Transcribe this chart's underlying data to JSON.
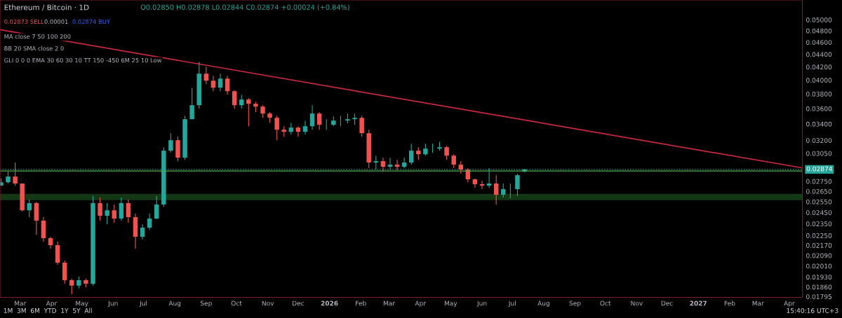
{
  "chart_data": {
    "type": "candlestick",
    "title": "Ethereum / Bitcoin · 1D",
    "subtitle": "O0.02850 H0.02878 L0.02844 C0.02874 +0.00024 (+0.84%)",
    "annotations": [
      "0.02873 SELL",
      "0.00001",
      "0.02874 BUY",
      "MA close 7 50 100 200",
      "BB 20 SMA close 2 0",
      "GLI 0 0 0 EMA 30 60 30 10 TT 150 -450 6M 25 10 Low",
      "1M  3M  6M  YTD  1Y  5Y  All",
      "15:40:16 UTC+3"
    ],
    "x": [
      "2025-02-10",
      "2025-02-17",
      "2025-02-24",
      "2025-03-03",
      "2025-03-10",
      "2025-03-17",
      "2025-03-24",
      "2025-03-31",
      "2025-04-07",
      "2025-04-14",
      "2025-04-21",
      "2025-04-28",
      "2025-05-05",
      "2025-05-12",
      "2025-05-19",
      "2025-05-26",
      "2025-06-02",
      "2025-06-09",
      "2025-06-16",
      "2025-06-23",
      "2025-06-30",
      "2025-07-07",
      "2025-07-14",
      "2025-07-21",
      "2025-07-28",
      "2025-08-04",
      "2025-08-11",
      "2025-08-18",
      "2025-08-25",
      "2025-09-01",
      "2025-09-08",
      "2025-09-15",
      "2025-09-22",
      "2025-09-29",
      "2025-10-06",
      "2025-10-13",
      "2025-10-20",
      "2025-10-27",
      "2025-11-03",
      "2025-11-10",
      "2025-11-17",
      "2025-11-24",
      "2025-12-01",
      "2025-12-08",
      "2025-12-15",
      "2025-12-22",
      "2025-12-29",
      "2026-01-05",
      "2026-01-12",
      "2026-01-19",
      "2026-01-26",
      "2026-02-02",
      "2026-02-09",
      "2026-02-16",
      "2026-02-23",
      "2026-03-02",
      "2026-03-09",
      "2026-03-16",
      "2026-03-23",
      "2026-03-30",
      "2026-04-06",
      "2026-04-13",
      "2026-04-20",
      "2026-04-27",
      "2026-05-04",
      "2026-05-11",
      "2026-05-18",
      "2026-05-25",
      "2026-06-01",
      "2026-06-08",
      "2026-06-15",
      "2026-06-22",
      "2026-06-29",
      "2026-07-06",
      "2026-07-13"
    ],
    "ohlc": [
      [
        0.02706,
        0.02777,
        0.02706,
        0.02741
      ],
      [
        0.02741,
        0.0285,
        0.02727,
        0.02799
      ],
      [
        0.02799,
        0.02948,
        0.02706,
        0.02727
      ],
      [
        0.02727,
        0.02727,
        0.02459,
        0.02471
      ],
      [
        0.02471,
        0.02569,
        0.02408,
        0.02536
      ],
      [
        0.02536,
        0.02549,
        0.02257,
        0.02377
      ],
      [
        0.02377,
        0.02408,
        0.022,
        0.02228
      ],
      [
        0.02228,
        0.0224,
        0.02143,
        0.02171
      ],
      [
        0.02171,
        0.022,
        0.02019,
        0.02035
      ],
      [
        0.02035,
        0.02051,
        0.01883,
        0.01907
      ],
      [
        0.01907,
        0.01917,
        0.01811,
        0.01869
      ],
      [
        0.01869,
        0.01932,
        0.0185,
        0.01907
      ],
      [
        0.01907,
        0.01917,
        0.01859,
        0.01883
      ],
      [
        0.01883,
        0.02603,
        0.01869,
        0.02536
      ],
      [
        0.02536,
        0.0259,
        0.02377,
        0.02421
      ],
      [
        0.02421,
        0.02536,
        0.02346,
        0.02471
      ],
      [
        0.02471,
        0.02523,
        0.02359,
        0.02396
      ],
      [
        0.02396,
        0.0259,
        0.02377,
        0.02536
      ],
      [
        0.02536,
        0.02569,
        0.02359,
        0.02408
      ],
      [
        0.02408,
        0.0244,
        0.02143,
        0.0224
      ],
      [
        0.0224,
        0.02346,
        0.02217,
        0.02316
      ],
      [
        0.02316,
        0.0244,
        0.02298,
        0.02396
      ],
      [
        0.02396,
        0.02603,
        0.0239,
        0.02523
      ],
      [
        0.02523,
        0.0312,
        0.02504,
        0.0308
      ],
      [
        0.0308,
        0.03286,
        0.0306,
        0.03202
      ],
      [
        0.03202,
        0.03244,
        0.02963,
        0.03001
      ],
      [
        0.03001,
        0.03506,
        0.02978,
        0.03461
      ],
      [
        0.03461,
        0.03889,
        0.03461,
        0.03645
      ],
      [
        0.03645,
        0.0428,
        0.03598,
        0.04096
      ],
      [
        0.04096,
        0.04203,
        0.0394,
        0.03991
      ],
      [
        0.03991,
        0.04064,
        0.03839,
        0.03889
      ],
      [
        0.03889,
        0.04096,
        0.03839,
        0.04022
      ],
      [
        0.04022,
        0.04064,
        0.0379,
        0.03839
      ],
      [
        0.03839,
        0.0385,
        0.03598,
        0.03645
      ],
      [
        0.03645,
        0.0379,
        0.03598,
        0.03722
      ],
      [
        0.03722,
        0.03741,
        0.03372,
        0.03664
      ],
      [
        0.03664,
        0.03693,
        0.03552,
        0.03626
      ],
      [
        0.03626,
        0.03645,
        0.03479,
        0.03534
      ],
      [
        0.03534,
        0.03552,
        0.03416,
        0.03479
      ],
      [
        0.03479,
        0.03506,
        0.03202,
        0.03329
      ],
      [
        0.03329,
        0.03372,
        0.03244,
        0.03303
      ],
      [
        0.03303,
        0.03416,
        0.03269,
        0.03355
      ],
      [
        0.03355,
        0.03372,
        0.03244,
        0.03303
      ],
      [
        0.03303,
        0.03443,
        0.03269,
        0.03372
      ],
      [
        0.03372,
        0.03645,
        0.03329,
        0.03534
      ],
      [
        0.03534,
        0.03552,
        0.03329,
        0.0339
      ],
      [
        0.0339,
        0.03461,
        0.03329,
        0.0339
      ],
      [
        0.0339,
        0.03497,
        0.03372,
        0.03443
      ],
      [
        0.03443,
        0.03506,
        0.03372,
        0.03443
      ],
      [
        0.03443,
        0.03534,
        0.03407,
        0.03461
      ],
      [
        0.03461,
        0.03534,
        0.0339,
        0.03479
      ],
      [
        0.03479,
        0.03506,
        0.03244,
        0.03286
      ],
      [
        0.03286,
        0.03329,
        0.02887,
        0.02948
      ],
      [
        0.02948,
        0.03024,
        0.02872,
        0.02963
      ],
      [
        0.02963,
        0.03001,
        0.0285,
        0.02902
      ],
      [
        0.02902,
        0.03001,
        0.02872,
        0.02925
      ],
      [
        0.02925,
        0.02978,
        0.02865,
        0.02902
      ],
      [
        0.02902,
        0.03001,
        0.02887,
        0.02948
      ],
      [
        0.02948,
        0.03161,
        0.02925,
        0.0308
      ],
      [
        0.0308,
        0.0312,
        0.02978,
        0.0304
      ],
      [
        0.0304,
        0.03161,
        0.03024,
        0.03104
      ],
      [
        0.03104,
        0.03161,
        0.03056,
        0.03104
      ],
      [
        0.03104,
        0.03186,
        0.0308,
        0.0312
      ],
      [
        0.0312,
        0.03136,
        0.02978,
        0.03024
      ],
      [
        0.03024,
        0.0304,
        0.02887,
        0.02925
      ],
      [
        0.02925,
        0.02963,
        0.02828,
        0.02872
      ],
      [
        0.02872,
        0.02887,
        0.02741,
        0.0277
      ],
      [
        0.0277,
        0.02777,
        0.02685,
        0.0272
      ],
      [
        0.0272,
        0.02755,
        0.02671,
        0.02706
      ],
      [
        0.02706,
        0.02887,
        0.02685,
        0.02727
      ],
      [
        0.02727,
        0.02813,
        0.02523,
        0.02617
      ],
      [
        0.02617,
        0.02727,
        0.0259,
        0.02671
      ],
      [
        0.02671,
        0.02727,
        0.02583,
        0.02671
      ],
      [
        0.02671,
        0.02828,
        0.02603,
        0.02813
      ],
      [
        0.0285,
        0.02878,
        0.02844,
        0.02874
      ]
    ],
    "colors": [
      "#26a69a",
      "#26a69a",
      "#ef5350",
      "#ef5350",
      "#26a69a",
      "#ef5350",
      "#ef5350",
      "#ef5350",
      "#ef5350",
      "#ef5350",
      "#ef5350",
      "#26a69a",
      "#ef5350",
      "#26a69a",
      "#ef5350",
      "#26a69a",
      "#ef5350",
      "#26a69a",
      "#ef5350",
      "#ef5350",
      "#26a69a",
      "#26a69a",
      "#26a69a",
      "#26a69a",
      "#26a69a",
      "#ef5350",
      "#26a69a",
      "#26a69a",
      "#26a69a",
      "#ef5350",
      "#ef5350",
      "#26a69a",
      "#ef5350",
      "#ef5350",
      "#26a69a",
      "#ef5350",
      "#ef5350",
      "#ef5350",
      "#ef5350",
      "#ef5350",
      "#ef5350",
      "#26a69a",
      "#ef5350",
      "#26a69a",
      "#26a69a",
      "#ef5350",
      "#26a69a",
      "#26a69a",
      "#26a69a",
      "#26a69a",
      "#26a69a",
      "#ef5350",
      "#ef5350",
      "#26a69a",
      "#ef5350",
      "#26a69a",
      "#ef5350",
      "#26a69a",
      "#26a69a",
      "#ef5350",
      "#26a69a",
      "#26a69a",
      "#26a69a",
      "#ef5350",
      "#ef5350",
      "#ef5350",
      "#ef5350",
      "#ef5350",
      "#ef5350",
      "#26a69a",
      "#ef5350",
      "#26a69a",
      "#26a69a",
      "#26a69a",
      "#26a69a"
    ],
    "series": [
      {
        "type": "line",
        "color": "#c8293f",
        "x": [
          "2025-02-09",
          "2027-04-14"
        ],
        "values": [
          0.0482,
          0.0289
        ]
      }
    ],
    "ref_lines": [
      {
        "axis": "y",
        "value": 0.02857,
        "color": "#4caf50",
        "line_style": "solid"
      },
      {
        "axis": "y",
        "value": 0.02874,
        "label": "0.02874",
        "color": "#26a69a",
        "line_style": "dotted"
      }
    ],
    "bands": [
      {
        "axis": "y",
        "from": 0.0257,
        "to": 0.0262,
        "color": "#2e7d32"
      }
    ],
    "log": true,
    "xlim": [
      "2025-02-09",
      "2027-04-14"
    ],
    "xticks": [
      {
        "value": "2025-03-01",
        "label": "Mar"
      },
      {
        "value": "2025-04-01",
        "label": "Apr"
      },
      {
        "value": "2025-05-01",
        "label": "May"
      },
      {
        "value": "2025-06-01",
        "label": "Jun"
      },
      {
        "value": "2025-07-01",
        "label": "Jul"
      },
      {
        "value": "2025-08-01",
        "label": "Aug"
      },
      {
        "value": "2025-09-01",
        "label": "Sep"
      },
      {
        "value": "2025-10-01",
        "label": "Oct"
      },
      {
        "value": "2025-11-01",
        "label": "Nov"
      },
      {
        "value": "2025-12-01",
        "label": "Dec"
      },
      {
        "value": "2026-01-01",
        "label": "2026"
      },
      {
        "value": "2026-02-01",
        "label": "Feb"
      },
      {
        "value": "2026-03-01",
        "label": "Mar"
      },
      {
        "value": "2026-04-01",
        "label": "Apr"
      },
      {
        "value": "2026-05-01",
        "label": "May"
      },
      {
        "value": "2026-06-01",
        "label": "Jun"
      },
      {
        "value": "2026-07-01",
        "label": "Jul"
      },
      {
        "value": "2026-08-01",
        "label": "Aug"
      },
      {
        "value": "2026-09-01",
        "label": "Sep"
      },
      {
        "value": "2026-10-01",
        "label": "Oct"
      },
      {
        "value": "2026-11-01",
        "label": "Nov"
      },
      {
        "value": "2026-12-01",
        "label": "Dec"
      },
      {
        "value": "2027-01-01",
        "label": "2027"
      },
      {
        "value": "2027-02-01",
        "label": "Feb"
      },
      {
        "value": "2027-03-01",
        "label": "Mar"
      },
      {
        "value": "2027-04-01",
        "label": "Apr"
      }
    ],
    "ylim": [
      0.0179,
      0.0538
    ],
    "yticks": [
      {
        "value": 0.05,
        "label": "0.05000"
      },
      {
        "value": 0.048,
        "label": "0.04800"
      },
      {
        "value": 0.046,
        "label": "0.04600"
      },
      {
        "value": 0.044,
        "label": "0.04400"
      },
      {
        "value": 0.042,
        "label": "0.04200"
      },
      {
        "value": 0.04,
        "label": "0.04000"
      },
      {
        "value": 0.038,
        "label": "0.03800"
      },
      {
        "value": 0.036,
        "label": "0.03600"
      },
      {
        "value": 0.034,
        "label": "0.03400"
      },
      {
        "value": 0.032,
        "label": "0.03200"
      },
      {
        "value": 0.0305,
        "label": "0.03050"
      },
      {
        "value": 0.0275,
        "label": "0.02750"
      },
      {
        "value": 0.0265,
        "label": "0.02650"
      },
      {
        "value": 0.0255,
        "label": "0.02550"
      },
      {
        "value": 0.0245,
        "label": "0.02450"
      },
      {
        "value": 0.0235,
        "label": "0.02350"
      },
      {
        "value": 0.0225,
        "label": "0.02250"
      },
      {
        "value": 0.0217,
        "label": "0.02170"
      },
      {
        "value": 0.0209,
        "label": "0.02090"
      },
      {
        "value": 0.0201,
        "label": "0.02010"
      },
      {
        "value": 0.0193,
        "label": "0.01930"
      },
      {
        "value": 0.0186,
        "label": "0.01860"
      },
      {
        "value": 0.01795,
        "label": "0.01795"
      }
    ],
    "grid": false
  }
}
